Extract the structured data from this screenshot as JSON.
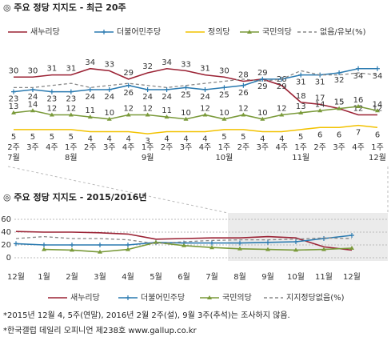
{
  "chart_data": [
    {
      "type": "line",
      "title": "◎  주요 정당 지지도 - 최근 20주",
      "categories": [
        "2주",
        "3주",
        "4주",
        "1주",
        "2주",
        "3주",
        "4주",
        "1주",
        "2주",
        "3주",
        "4주",
        "1주",
        "2주",
        "3주",
        "4주",
        "1주",
        "2주",
        "3주",
        "4주",
        "1주"
      ],
      "months": [
        "7월",
        null,
        null,
        "8월",
        null,
        null,
        null,
        "9월",
        null,
        null,
        null,
        "10월",
        null,
        null,
        null,
        "11월",
        null,
        null,
        null,
        "12월"
      ],
      "ylim": [
        0,
        40
      ],
      "grid": false,
      "series": [
        {
          "name": "새누리당",
          "color": "#9b2335",
          "marker": null,
          "dashed": false,
          "labels": true,
          "label_side": "above",
          "values": [
            30,
            30,
            31,
            31,
            34,
            33,
            29,
            32,
            34,
            33,
            31,
            30,
            28,
            29,
            26,
            18,
            17,
            15,
            12,
            12
          ]
        },
        {
          "name": "더불어민주당",
          "color": "#2a7ab0",
          "marker": "plus",
          "dashed": false,
          "labels": true,
          "label_side": "below",
          "values": [
            23,
            24,
            23,
            23,
            24,
            24,
            26,
            24,
            24,
            25,
            24,
            25,
            26,
            29,
            29,
            31,
            31,
            32,
            34,
            34
          ]
        },
        {
          "name": "정의당",
          "color": "#f2c200",
          "marker": null,
          "dashed": false,
          "labels": true,
          "label_side": "below",
          "values": [
            5,
            5,
            5,
            5,
            4,
            4,
            4,
            3,
            4,
            4,
            4,
            5,
            5,
            4,
            4,
            5,
            6,
            6,
            7,
            6
          ]
        },
        {
          "name": "국민의당",
          "color": "#7a9a3a",
          "marker": "triangle",
          "dashed": false,
          "labels": true,
          "label_side": "above",
          "values": [
            13,
            14,
            12,
            12,
            11,
            10,
            12,
            12,
            11,
            10,
            12,
            10,
            12,
            10,
            12,
            13,
            14,
            15,
            16,
            14
          ]
        },
        {
          "name": "없음/유보(%)",
          "color": "#888888",
          "marker": null,
          "dashed": true,
          "labels": false,
          "label_side": "above",
          "values": [
            25,
            25,
            26,
            27,
            25,
            26,
            27,
            26,
            25,
            26,
            27,
            28,
            29,
            28,
            29,
            33,
            31,
            31,
            32,
            31
          ]
        }
      ]
    },
    {
      "type": "line",
      "title": "◎  주요 정당 지지도 - 2015/2016년",
      "categories": [
        "12월",
        "1월",
        "2월",
        "3월",
        "4월",
        "5월",
        "6월",
        "7월",
        "8월",
        "9월",
        "10월",
        "11월",
        "12월"
      ],
      "ylim": [
        0,
        60
      ],
      "yticks": [
        0,
        20,
        40,
        60
      ],
      "grid": true,
      "series": [
        {
          "name": "새누리당",
          "color": "#9b2335",
          "marker": null,
          "dashed": false,
          "labels": false,
          "values": [
            41,
            40,
            40,
            39,
            37,
            29,
            30,
            31,
            31,
            33,
            31,
            17,
            12
          ]
        },
        {
          "name": "더불어민주당",
          "color": "#2a7ab0",
          "marker": "plus",
          "dashed": false,
          "labels": false,
          "values": [
            22,
            20,
            20,
            20,
            20,
            24,
            23,
            23,
            23,
            24,
            25,
            30,
            35
          ]
        },
        {
          "name": "국민의당",
          "color": "#7a9a3a",
          "marker": "triangle",
          "dashed": false,
          "labels": false,
          "values": [
            null,
            13,
            12,
            9,
            13,
            24,
            19,
            16,
            14,
            13,
            12,
            13,
            15
          ]
        },
        {
          "name": "지지정당없음(%)",
          "color": "#888888",
          "marker": null,
          "dashed": true,
          "labels": false,
          "values": [
            30,
            33,
            30,
            30,
            28,
            22,
            25,
            27,
            28,
            28,
            29,
            31,
            30
          ]
        }
      ]
    }
  ],
  "notes": [
    "*2015년 12월 4, 5주(연말), 2016년 2월 2주(설), 9월 3주(추석)는 조사하지 않음.",
    "*한국갤럽 데일리 오피니언 제238호 www.gallup.co.kr"
  ]
}
